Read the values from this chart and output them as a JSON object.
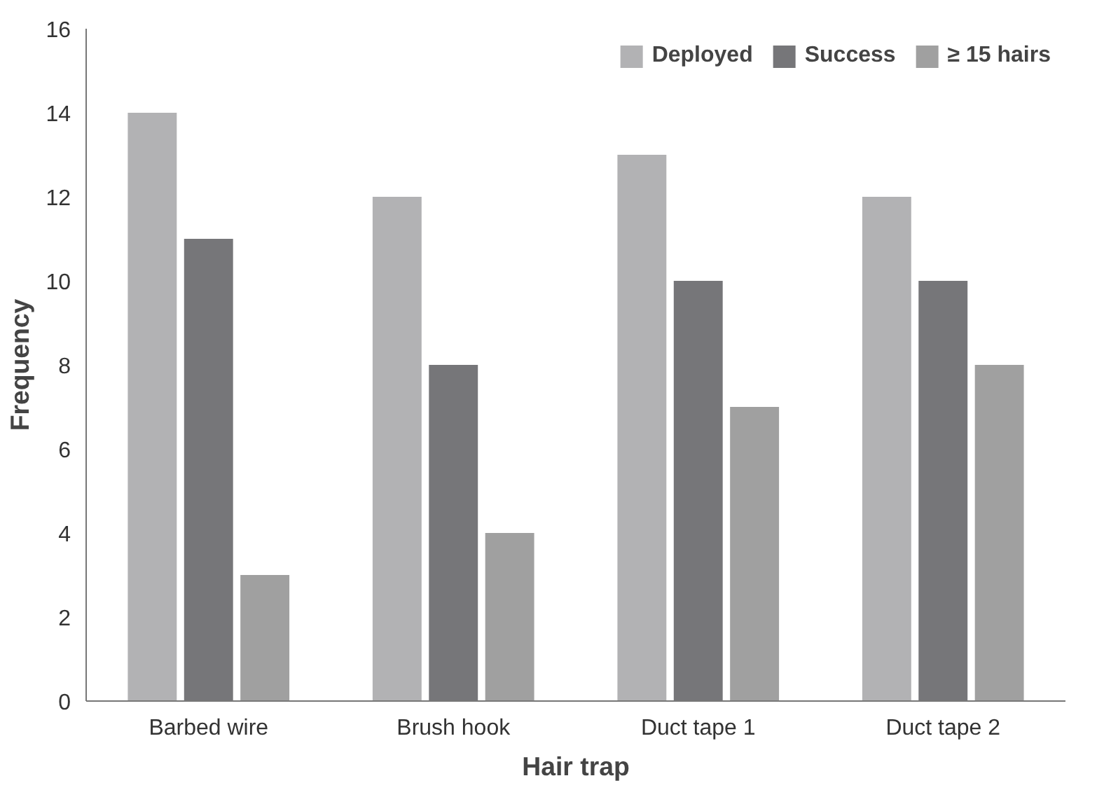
{
  "chart_data": {
    "type": "bar",
    "xlabel": "Hair trap",
    "ylabel": "Frequency",
    "categories": [
      "Barbed wire",
      "Brush hook",
      "Duct tape 1",
      "Duct tape 2"
    ],
    "series": [
      {
        "name": "Deployed",
        "color": "#b2b2b4",
        "values": [
          14,
          12,
          13,
          12
        ]
      },
      {
        "name": "Success",
        "color": "#767679",
        "values": [
          11,
          8,
          10,
          10
        ]
      },
      {
        "name": "≥ 15 hairs",
        "color": "#a0a0a0",
        "values": [
          3,
          4,
          7,
          8
        ]
      }
    ],
    "ylim": [
      0,
      16
    ],
    "yticks": [
      0,
      2,
      4,
      6,
      8,
      10,
      12,
      14,
      16
    ],
    "grid": false,
    "legend": "top right"
  }
}
